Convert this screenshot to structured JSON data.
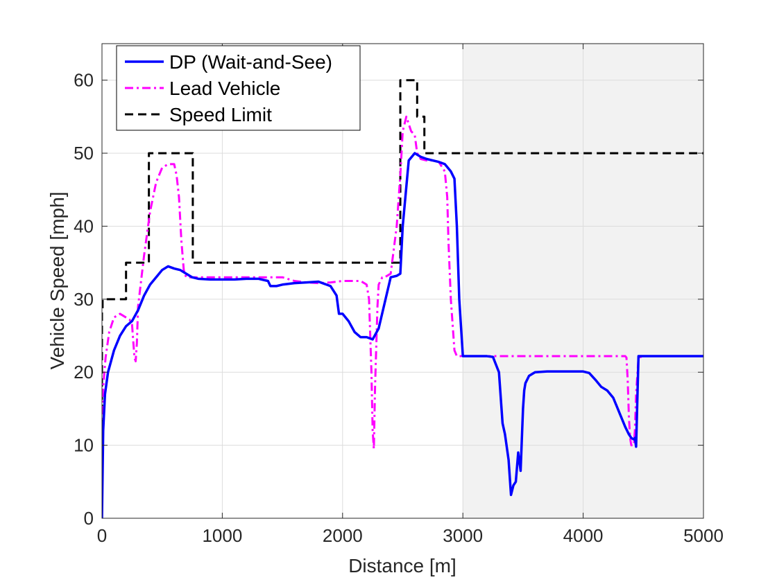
{
  "chart_data": {
    "type": "line",
    "title": "",
    "xlabel": "Distance [m]",
    "ylabel": "Vehicle Speed [mph]",
    "xlim": [
      0,
      5000
    ],
    "ylim": [
      0,
      65
    ],
    "xticks": [
      0,
      1000,
      2000,
      3000,
      4000,
      5000
    ],
    "yticks": [
      0,
      10,
      20,
      30,
      40,
      50,
      60
    ],
    "grid": true,
    "legend_position": "top-left",
    "shaded_region": {
      "x": [
        3000,
        5000
      ],
      "color": "#f2f2f2"
    },
    "series": [
      {
        "name": "DP (Wait-and-See)",
        "color": "#0000ff",
        "style": "solid",
        "x": [
          0,
          10,
          25,
          50,
          100,
          150,
          200,
          250,
          300,
          350,
          400,
          450,
          500,
          550,
          600,
          650,
          700,
          750,
          800,
          900,
          1000,
          1100,
          1200,
          1300,
          1380,
          1400,
          1450,
          1500,
          1600,
          1700,
          1800,
          1900,
          1950,
          1970,
          2000,
          2050,
          2100,
          2150,
          2200,
          2250,
          2300,
          2350,
          2400,
          2450,
          2480,
          2500,
          2550,
          2600,
          2650,
          2700,
          2800,
          2850,
          2900,
          2930,
          2950,
          2970,
          3000,
          3010,
          3100,
          3200,
          3250,
          3300,
          3330,
          3350,
          3380,
          3400,
          3420,
          3440,
          3460,
          3480,
          3500,
          3510,
          3520,
          3550,
          3600,
          3700,
          3800,
          3900,
          4000,
          4050,
          4100,
          4150,
          4200,
          4250,
          4300,
          4350,
          4380,
          4400,
          4420,
          4430,
          4440,
          4460,
          4500,
          4600,
          4800,
          5000
        ],
        "y": [
          0,
          12,
          17,
          20,
          23,
          25,
          26.3,
          27,
          28.5,
          30.5,
          32,
          33,
          34,
          34.5,
          34.2,
          34,
          33.5,
          33,
          32.8,
          32.7,
          32.7,
          32.7,
          32.8,
          32.8,
          32.5,
          31.8,
          31.8,
          32,
          32.2,
          32.3,
          32.4,
          31.8,
          30.5,
          28,
          28,
          27,
          25.5,
          24.8,
          24.8,
          24.5,
          26,
          29.5,
          33,
          33.2,
          33.5,
          40,
          49,
          50,
          49.5,
          49.2,
          48.8,
          48.5,
          47.5,
          46.5,
          40,
          30,
          22.2,
          22.2,
          22.2,
          22.2,
          22.1,
          20,
          13,
          11.5,
          8,
          3.2,
          4.5,
          5,
          9,
          6.5,
          15,
          17.5,
          18.5,
          19.5,
          20,
          20.1,
          20.1,
          20.1,
          20.1,
          19.9,
          19,
          18,
          17.5,
          16.5,
          14.5,
          12.5,
          11.5,
          11,
          10.8,
          11,
          9.8,
          22.2,
          22.2,
          22.2,
          22.2,
          22.2
        ]
      },
      {
        "name": "Lead Vehicle",
        "color": "#ff00ff",
        "style": "dashdot",
        "x": [
          0,
          10,
          30,
          60,
          100,
          150,
          200,
          230,
          250,
          270,
          280,
          290,
          300,
          350,
          400,
          450,
          500,
          550,
          600,
          620,
          640,
          660,
          680,
          700,
          720,
          750,
          800,
          1000,
          1200,
          1400,
          1500,
          1600,
          1700,
          1800,
          1900,
          2000,
          2100,
          2150,
          2200,
          2220,
          2240,
          2250,
          2260,
          2270,
          2290,
          2300,
          2330,
          2350,
          2400,
          2450,
          2480,
          2500,
          2530,
          2550,
          2570,
          2600,
          2620,
          2650,
          2700,
          2750,
          2800,
          2850,
          2870,
          2880,
          2900,
          2930,
          2950,
          2970,
          3000,
          3200,
          3400,
          3600,
          3800,
          4000,
          4200,
          4350,
          4360,
          4370,
          4380,
          4390,
          4400,
          4420,
          4430,
          4440,
          4460,
          4500,
          4800,
          5000
        ],
        "y": [
          0,
          18,
          22,
          25.5,
          27.5,
          28,
          27.5,
          27.2,
          26.5,
          22,
          21.5,
          24,
          29,
          36,
          42,
          46,
          48,
          48.5,
          48.5,
          47,
          44,
          38,
          34,
          33,
          33,
          33,
          33,
          33,
          33,
          33,
          33,
          32.5,
          32.3,
          32.2,
          32.3,
          32.5,
          32.5,
          32.5,
          32,
          30,
          20,
          12,
          9.5,
          18,
          29,
          32,
          33,
          33,
          33.5,
          40,
          47,
          53,
          55,
          54,
          53,
          52.5,
          50,
          49.2,
          49,
          49,
          48.8,
          47.5,
          44,
          38,
          30,
          23,
          22.2,
          22.2,
          22.2,
          22.2,
          22.2,
          22.2,
          22.2,
          22.2,
          22.2,
          22.2,
          22,
          19,
          14,
          11,
          10,
          10,
          12,
          17,
          22,
          22.2,
          22.2,
          22.2
        ]
      },
      {
        "name": "Speed Limit",
        "color": "#000000",
        "style": "dashed",
        "x": [
          0,
          0,
          5,
          5,
          200,
          200,
          390,
          390,
          755,
          755,
          2480,
          2480,
          2620,
          2620,
          2680,
          2680,
          5000
        ],
        "y": [
          0,
          28.5,
          28.5,
          30,
          30,
          35,
          35,
          50,
          50,
          35,
          35,
          60,
          60,
          55,
          55,
          50,
          50
        ]
      }
    ]
  }
}
